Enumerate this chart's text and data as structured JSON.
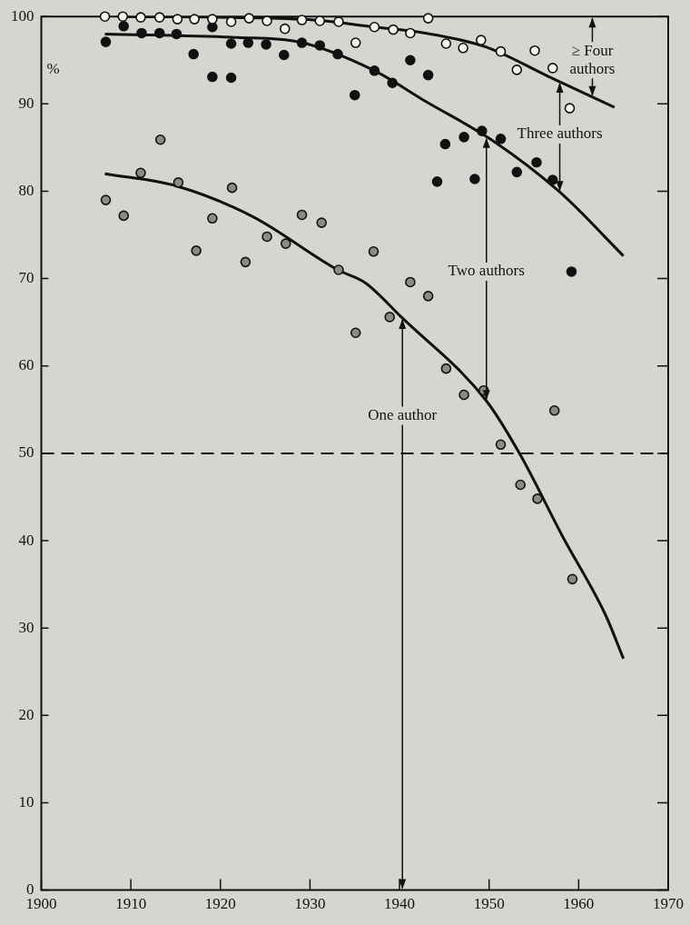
{
  "chart_data": {
    "type": "scatter",
    "ylabel": "%",
    "xlim": [
      1900,
      1970
    ],
    "ylim": [
      0,
      100
    ],
    "xticks": [
      1900,
      1910,
      1920,
      1930,
      1940,
      1950,
      1960,
      1970
    ],
    "yticks": [
      0,
      10,
      20,
      30,
      40,
      50,
      60,
      70,
      80,
      90,
      100
    ],
    "grid": false,
    "legend": false,
    "marker": "circle",
    "series": [
      {
        "type": "scatter",
        "color": "#f4f4f0",
        "x": [
          1907.1,
          1909.1,
          1911.1,
          1913.2,
          1915.2,
          1917.1,
          1919.1,
          1921.2,
          1923.2,
          1925.2,
          1927.2,
          1929.1,
          1931.1,
          1933.2,
          1935.1,
          1937.2,
          1939.3,
          1941.2,
          1943.2,
          1945.2,
          1947.1,
          1949.1,
          1951.3,
          1953.1,
          1955.1,
          1957.1,
          1959.0
        ],
        "values": [
          100,
          100,
          99.9,
          99.9,
          99.7,
          99.7,
          99.7,
          99.4,
          99.8,
          99.5,
          98.6,
          99.6,
          99.5,
          99.4,
          97.0,
          98.8,
          98.5,
          98.1,
          99.8,
          96.9,
          96.4,
          97.3,
          96.0,
          93.9,
          96.1,
          94.1,
          89.5
        ]
      },
      {
        "type": "scatter",
        "color": "#111111",
        "x": [
          1907.2,
          1909.2,
          1911.2,
          1913.2,
          1915.1,
          1917.0,
          1919.1,
          1919.1,
          1921.2,
          1921.2,
          1923.1,
          1925.1,
          1927.1,
          1929.1,
          1931.1,
          1933.1,
          1935.0,
          1937.2,
          1939.2,
          1941.2,
          1943.2,
          1944.2,
          1945.1,
          1947.2,
          1948.4,
          1949.2,
          1951.3,
          1953.1,
          1955.3,
          1957.1,
          1959.2
        ],
        "values": [
          97.1,
          98.9,
          98.1,
          98.1,
          98.0,
          95.7,
          98.8,
          93.1,
          96.9,
          93.0,
          97.0,
          96.8,
          95.6,
          97.0,
          96.7,
          95.7,
          91.0,
          93.8,
          92.4,
          95.0,
          93.3,
          81.1,
          85.4,
          86.2,
          81.4,
          86.9,
          86.0,
          82.2,
          83.3,
          81.3,
          70.8
        ]
      },
      {
        "type": "scatter",
        "color": "#8a8a86",
        "x": [
          1907.2,
          1909.2,
          1911.1,
          1913.3,
          1915.3,
          1917.3,
          1919.1,
          1921.3,
          1922.8,
          1925.2,
          1927.3,
          1929.1,
          1931.3,
          1933.2,
          1935.1,
          1937.1,
          1938.9,
          1941.2,
          1943.2,
          1945.2,
          1947.2,
          1949.4,
          1951.3,
          1953.5,
          1955.4,
          1957.3,
          1959.3
        ],
        "values": [
          79.0,
          77.2,
          82.1,
          85.9,
          81.0,
          73.2,
          76.9,
          80.4,
          71.9,
          74.8,
          74.0,
          77.3,
          76.4,
          71.0,
          63.8,
          73.1,
          65.6,
          69.6,
          68.0,
          59.7,
          56.7,
          57.2,
          51.0,
          46.4,
          44.8,
          54.9,
          35.6
        ]
      },
      {
        "type": "line",
        "marker": "none",
        "color": "#111111",
        "x": [
          1909.4,
          1929,
          1937.2,
          1942.9,
          1949.7,
          1956.5,
          1964.0
        ],
        "values": [
          100,
          99.7,
          98.8,
          98.1,
          96.5,
          93.2,
          89.6
        ]
      },
      {
        "type": "line",
        "marker": "none",
        "color": "#111111",
        "x": [
          1907.1,
          1921.9,
          1928.7,
          1937.2,
          1942.9,
          1950.4,
          1957.9,
          1965.0
        ],
        "values": [
          98.0,
          97.6,
          97.1,
          93.8,
          90.3,
          85.8,
          79.9,
          72.6
        ]
      },
      {
        "type": "line",
        "marker": "none",
        "color": "#111111",
        "x": [
          1907.1,
          1915.1,
          1923.6,
          1933.1,
          1936.2,
          1940.2,
          1949.7,
          1953.5,
          1958.2,
          1963.0,
          1965.0
        ],
        "values": [
          82.0,
          80.6,
          77.1,
          71.0,
          69.5,
          65.6,
          56.0,
          49.8,
          40.5,
          31.5,
          26.5
        ]
      }
    ],
    "ref_lines": [
      {
        "axis": "y",
        "value": 50,
        "line_style": "dashed"
      }
    ],
    "annotations": [
      "≥ Four authors",
      "Three authors",
      "Two authors",
      "One author"
    ]
  }
}
